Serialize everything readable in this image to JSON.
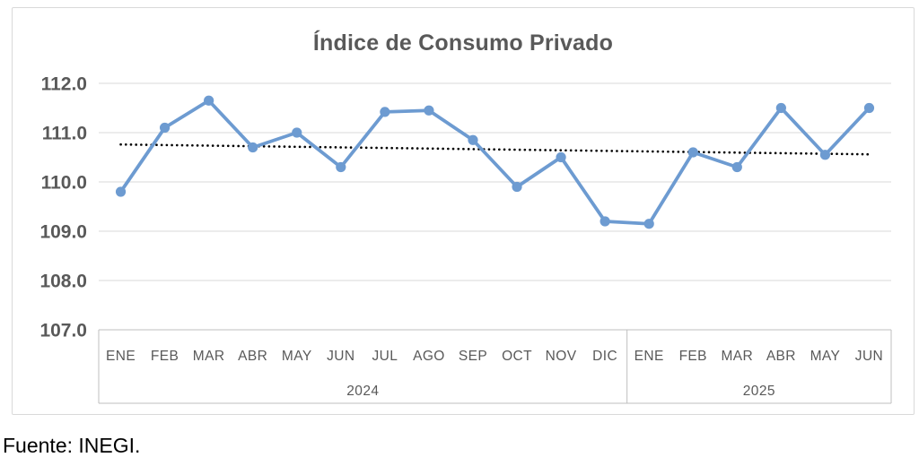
{
  "title": "Índice de Consumo Privado",
  "source_note": "Fuente: INEGI.",
  "chart_data": {
    "type": "line",
    "title": "Índice de Consumo Privado",
    "categories": [
      "ENE",
      "FEB",
      "MAR",
      "ABR",
      "MAY",
      "JUN",
      "JUL",
      "AGO",
      "SEP",
      "OCT",
      "NOV",
      "DIC",
      "ENE",
      "FEB",
      "MAR",
      "ABR",
      "MAY",
      "JUN"
    ],
    "year_groups": [
      {
        "label": "2024",
        "span": 12
      },
      {
        "label": "2025",
        "span": 6
      }
    ],
    "series": [
      {
        "name": "Índice de Consumo Privado",
        "values": [
          109.8,
          111.1,
          111.65,
          110.7,
          111.0,
          110.3,
          111.42,
          111.45,
          110.85,
          109.9,
          110.5,
          109.2,
          109.15,
          110.6,
          110.3,
          111.5,
          110.55,
          111.5
        ]
      }
    ],
    "trendline": {
      "type": "linear",
      "start_value": 110.76,
      "end_value": 110.56,
      "style": "dotted"
    },
    "y_ticks": [
      112.0,
      111.0,
      110.0,
      109.0,
      108.0,
      107.0
    ],
    "ylim": [
      107.0,
      112.0
    ],
    "xlabel": "",
    "ylabel": "",
    "grid": true,
    "legend": "none",
    "colors": {
      "line": "#6d9bd1",
      "grid": "#d9d9d9",
      "axis_box": "#bfbfbf",
      "text": "#595959",
      "trendline": "#000000"
    }
  }
}
